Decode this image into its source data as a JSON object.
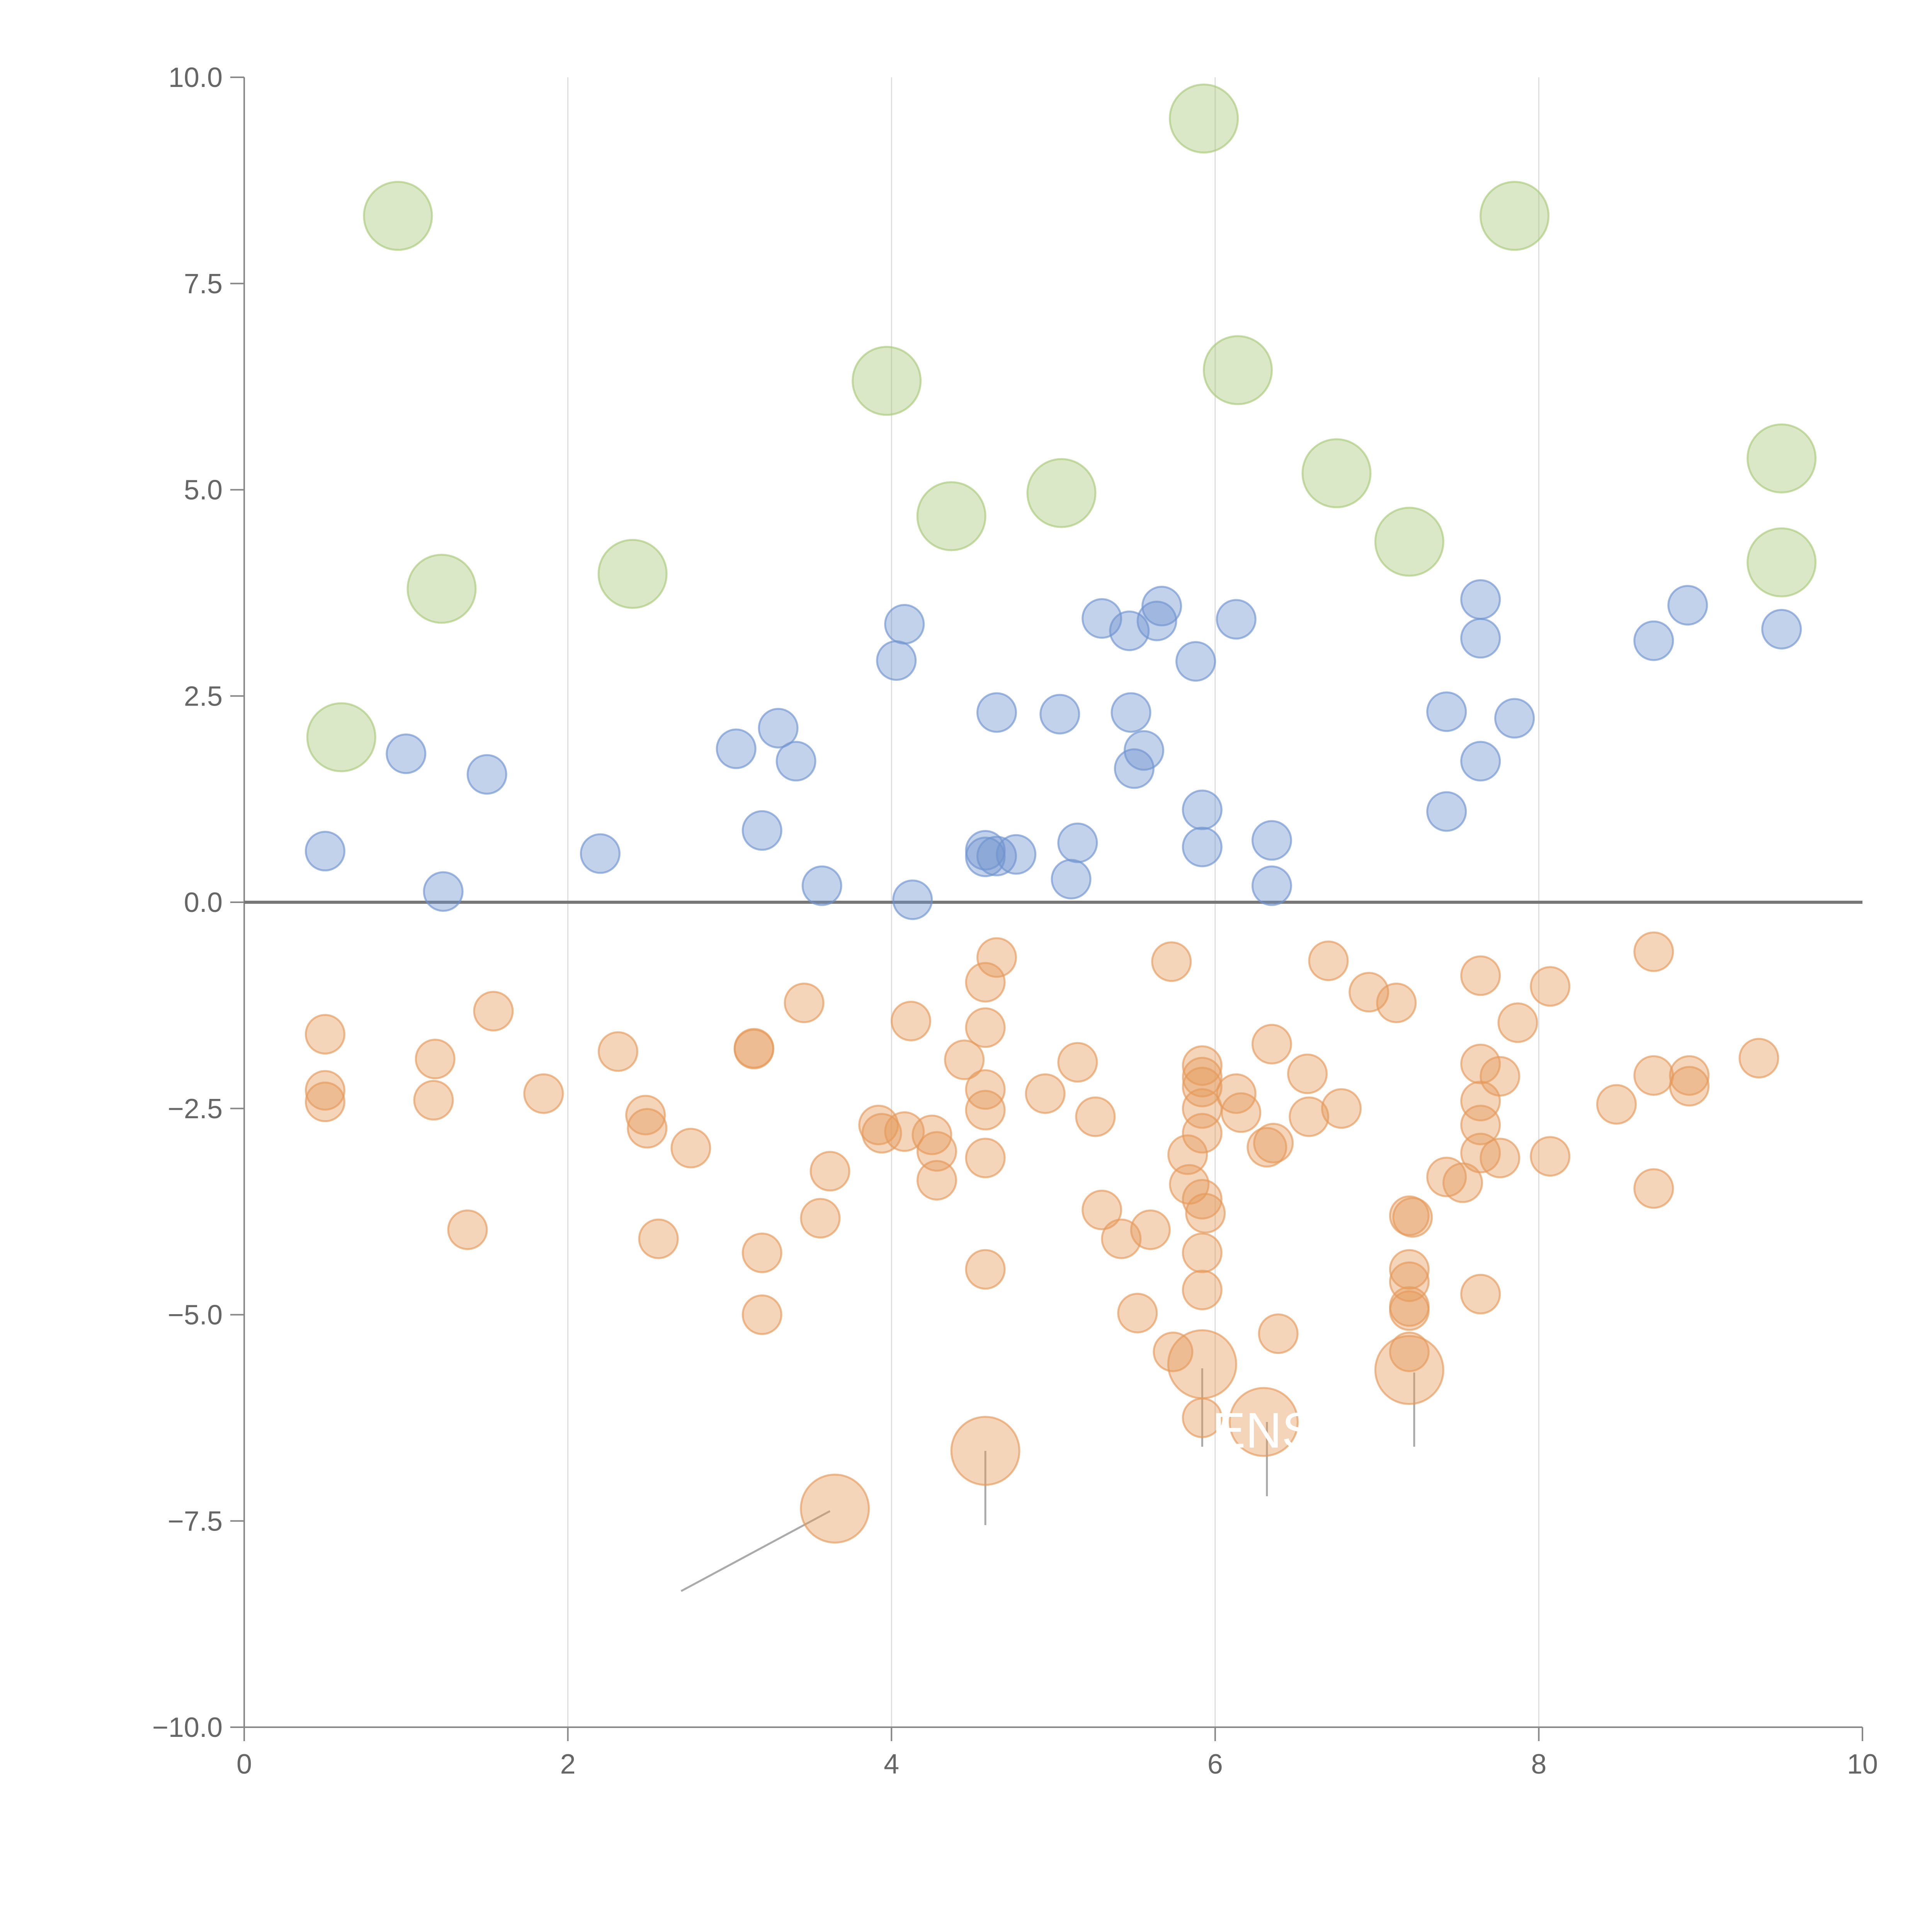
{
  "chart_data": {
    "type": "scatter",
    "title": "",
    "xlabel": "",
    "ylabel": "",
    "xlim": [
      0,
      10
    ],
    "ylim": [
      -10,
      10
    ],
    "x_ticks": [
      0,
      2,
      4,
      6,
      8,
      10
    ],
    "x_tick_labels": [
      "0",
      "2",
      "4",
      "6",
      "8",
      "10"
    ],
    "y_ticks": [
      10,
      7.5,
      5,
      2.5,
      0,
      -2.5,
      -5,
      -7.5,
      -10
    ],
    "y_tick_labels": [
      "10.0",
      "7.5",
      "5.0",
      "2.5",
      "0.0",
      "−2.5",
      "−5.0",
      "−7.5",
      "−10.0"
    ],
    "vertical_gridlines_at": [
      2,
      4,
      6,
      8
    ],
    "zero_line": 0,
    "colors": {
      "green": "#a9c97a",
      "blue": "#6f93cf",
      "orange": "#e59a5a",
      "axis": "#888888",
      "grid": "#dddddd",
      "zero_line": "#777777",
      "leader": "#aaaaaa"
    },
    "series": [
      {
        "name": "green",
        "color": "#a9c97a",
        "size": "large",
        "points": [
          [
            0.95,
            8.32
          ],
          [
            5.93,
            9.5
          ],
          [
            7.85,
            8.32
          ],
          [
            3.97,
            6.32
          ],
          [
            6.14,
            6.45
          ],
          [
            6.75,
            5.2
          ],
          [
            9.5,
            5.38
          ],
          [
            4.37,
            4.68
          ],
          [
            5.05,
            4.96
          ],
          [
            7.2,
            4.37
          ],
          [
            1.22,
            3.8
          ],
          [
            2.4,
            3.98
          ],
          [
            9.5,
            4.12
          ],
          [
            0.6,
            2.0
          ]
        ]
      },
      {
        "name": "blue",
        "color": "#6f93cf",
        "size": "medium",
        "points": [
          [
            0.5,
            0.62
          ],
          [
            1.0,
            1.8
          ],
          [
            1.23,
            0.13
          ],
          [
            1.5,
            1.55
          ],
          [
            2.2,
            0.59
          ],
          [
            3.04,
            1.86
          ],
          [
            3.2,
            0.87
          ],
          [
            3.3,
            2.11
          ],
          [
            3.41,
            1.71
          ],
          [
            3.57,
            0.2
          ],
          [
            4.03,
            2.93
          ],
          [
            4.08,
            3.37
          ],
          [
            4.13,
            0.03
          ],
          [
            4.58,
            0.63
          ],
          [
            4.58,
            0.55
          ],
          [
            4.65,
            0.56
          ],
          [
            4.65,
            2.3
          ],
          [
            4.77,
            0.58
          ],
          [
            5.04,
            2.28
          ],
          [
            5.11,
            0.28
          ],
          [
            5.15,
            0.72
          ],
          [
            5.3,
            3.44
          ],
          [
            5.47,
            3.29
          ],
          [
            5.48,
            2.3
          ],
          [
            5.5,
            1.62
          ],
          [
            5.56,
            1.84
          ],
          [
            5.64,
            3.41
          ],
          [
            5.67,
            3.59
          ],
          [
            5.88,
            2.92
          ],
          [
            5.92,
            1.12
          ],
          [
            5.92,
            0.67
          ],
          [
            6.13,
            3.43
          ],
          [
            6.35,
            0.75
          ],
          [
            6.35,
            0.2
          ],
          [
            7.43,
            2.31
          ],
          [
            7.43,
            1.1
          ],
          [
            7.64,
            3.67
          ],
          [
            7.64,
            3.2
          ],
          [
            7.64,
            1.71
          ],
          [
            7.85,
            2.23
          ],
          [
            8.71,
            3.17
          ],
          [
            8.92,
            3.6
          ],
          [
            9.5,
            3.31
          ]
        ]
      },
      {
        "name": "orange",
        "color": "#e59a5a",
        "size": "medium",
        "points": [
          [
            0.5,
            -1.6
          ],
          [
            0.5,
            -2.28
          ],
          [
            0.5,
            -2.42
          ],
          [
            1.18,
            -1.9
          ],
          [
            1.17,
            -2.4
          ],
          [
            1.38,
            -3.97
          ],
          [
            1.54,
            -1.32
          ],
          [
            1.85,
            -2.32
          ],
          [
            2.31,
            -1.81
          ],
          [
            2.48,
            -2.58
          ],
          [
            2.49,
            -2.74
          ],
          [
            2.56,
            -4.08
          ],
          [
            2.76,
            -2.98
          ],
          [
            3.15,
            -1.78
          ],
          [
            3.15,
            -1.77
          ],
          [
            3.2,
            -4.25
          ],
          [
            3.2,
            -5.0
          ],
          [
            3.46,
            -1.22
          ],
          [
            3.56,
            -3.83
          ],
          [
            3.62,
            -3.26
          ],
          [
            3.92,
            -2.7
          ],
          [
            3.94,
            -2.8
          ],
          [
            4.08,
            -2.78
          ],
          [
            4.12,
            -1.44
          ],
          [
            4.25,
            -2.82
          ],
          [
            4.28,
            -3.02
          ],
          [
            4.28,
            -3.37
          ],
          [
            4.45,
            -1.91
          ],
          [
            4.58,
            -0.97
          ],
          [
            4.58,
            -1.52
          ],
          [
            4.58,
            -2.27
          ],
          [
            4.58,
            -2.52
          ],
          [
            4.58,
            -3.1
          ],
          [
            4.58,
            -4.45
          ],
          [
            4.65,
            -0.67
          ],
          [
            4.95,
            -2.32
          ],
          [
            5.15,
            -1.94
          ],
          [
            5.26,
            -2.6
          ],
          [
            5.3,
            -3.73
          ],
          [
            5.42,
            -4.08
          ],
          [
            5.52,
            -4.98
          ],
          [
            5.6,
            -3.97
          ],
          [
            5.73,
            -0.72
          ],
          [
            5.74,
            -5.45
          ],
          [
            5.83,
            -3.06
          ],
          [
            5.84,
            -3.42
          ],
          [
            5.92,
            -1.98
          ],
          [
            5.92,
            -2.12
          ],
          [
            5.92,
            -2.24
          ],
          [
            5.92,
            -2.5
          ],
          [
            5.92,
            -2.8
          ],
          [
            5.92,
            -3.6
          ],
          [
            5.92,
            -4.25
          ],
          [
            5.92,
            -4.7
          ],
          [
            5.92,
            -6.25
          ],
          [
            5.94,
            -3.77
          ],
          [
            6.13,
            -2.32
          ],
          [
            6.16,
            -2.55
          ],
          [
            6.32,
            -2.97
          ],
          [
            6.36,
            -2.92
          ],
          [
            6.35,
            -1.72
          ],
          [
            6.39,
            -5.23
          ],
          [
            6.57,
            -2.08
          ],
          [
            6.58,
            -2.6
          ],
          [
            6.7,
            -0.71
          ],
          [
            6.78,
            -2.5
          ],
          [
            6.95,
            -1.09
          ],
          [
            7.12,
            -1.22
          ],
          [
            7.2,
            -3.8
          ],
          [
            7.22,
            -3.82
          ],
          [
            7.2,
            -4.45
          ],
          [
            7.2,
            -4.6
          ],
          [
            7.2,
            -4.9
          ],
          [
            7.2,
            -4.95
          ],
          [
            7.2,
            -5.45
          ],
          [
            7.43,
            -3.33
          ],
          [
            7.53,
            -3.4
          ],
          [
            7.64,
            -0.89
          ],
          [
            7.64,
            -1.96
          ],
          [
            7.64,
            -2.41
          ],
          [
            7.64,
            -2.7
          ],
          [
            7.64,
            -3.04
          ],
          [
            7.64,
            -4.75
          ],
          [
            7.76,
            -2.11
          ],
          [
            7.76,
            -3.1
          ],
          [
            7.87,
            -1.46
          ],
          [
            8.07,
            -1.02
          ],
          [
            8.07,
            -3.08
          ],
          [
            8.48,
            -2.45
          ],
          [
            8.71,
            -0.6
          ],
          [
            8.71,
            -2.1
          ],
          [
            8.71,
            -3.47
          ],
          [
            8.93,
            -2.1
          ],
          [
            8.93,
            -2.23
          ],
          [
            9.36,
            -1.89
          ]
        ]
      },
      {
        "name": "orange-large",
        "color": "#e59a5a",
        "size": "large",
        "points": [
          [
            5.92,
            -5.6
          ],
          [
            7.2,
            -5.67
          ],
          [
            6.3,
            -6.3
          ],
          [
            4.58,
            -6.65
          ],
          [
            3.65,
            -7.35
          ]
        ]
      }
    ],
    "annotations": [
      {
        "text": "ENS",
        "x": 6.3,
        "y": -6.4
      }
    ],
    "leader_lines_from_points": [
      [
        [
          3.62,
          -7.38
        ],
        [
          2.7,
          -8.35
        ]
      ],
      [
        [
          4.58,
          -6.65
        ],
        [
          4.58,
          -7.55
        ]
      ],
      [
        [
          5.92,
          -5.65
        ],
        [
          5.92,
          -6.6
        ]
      ],
      [
        [
          6.32,
          -6.3
        ],
        [
          6.32,
          -7.2
        ]
      ],
      [
        [
          7.23,
          -5.7
        ],
        [
          7.23,
          -6.6
        ]
      ]
    ]
  }
}
